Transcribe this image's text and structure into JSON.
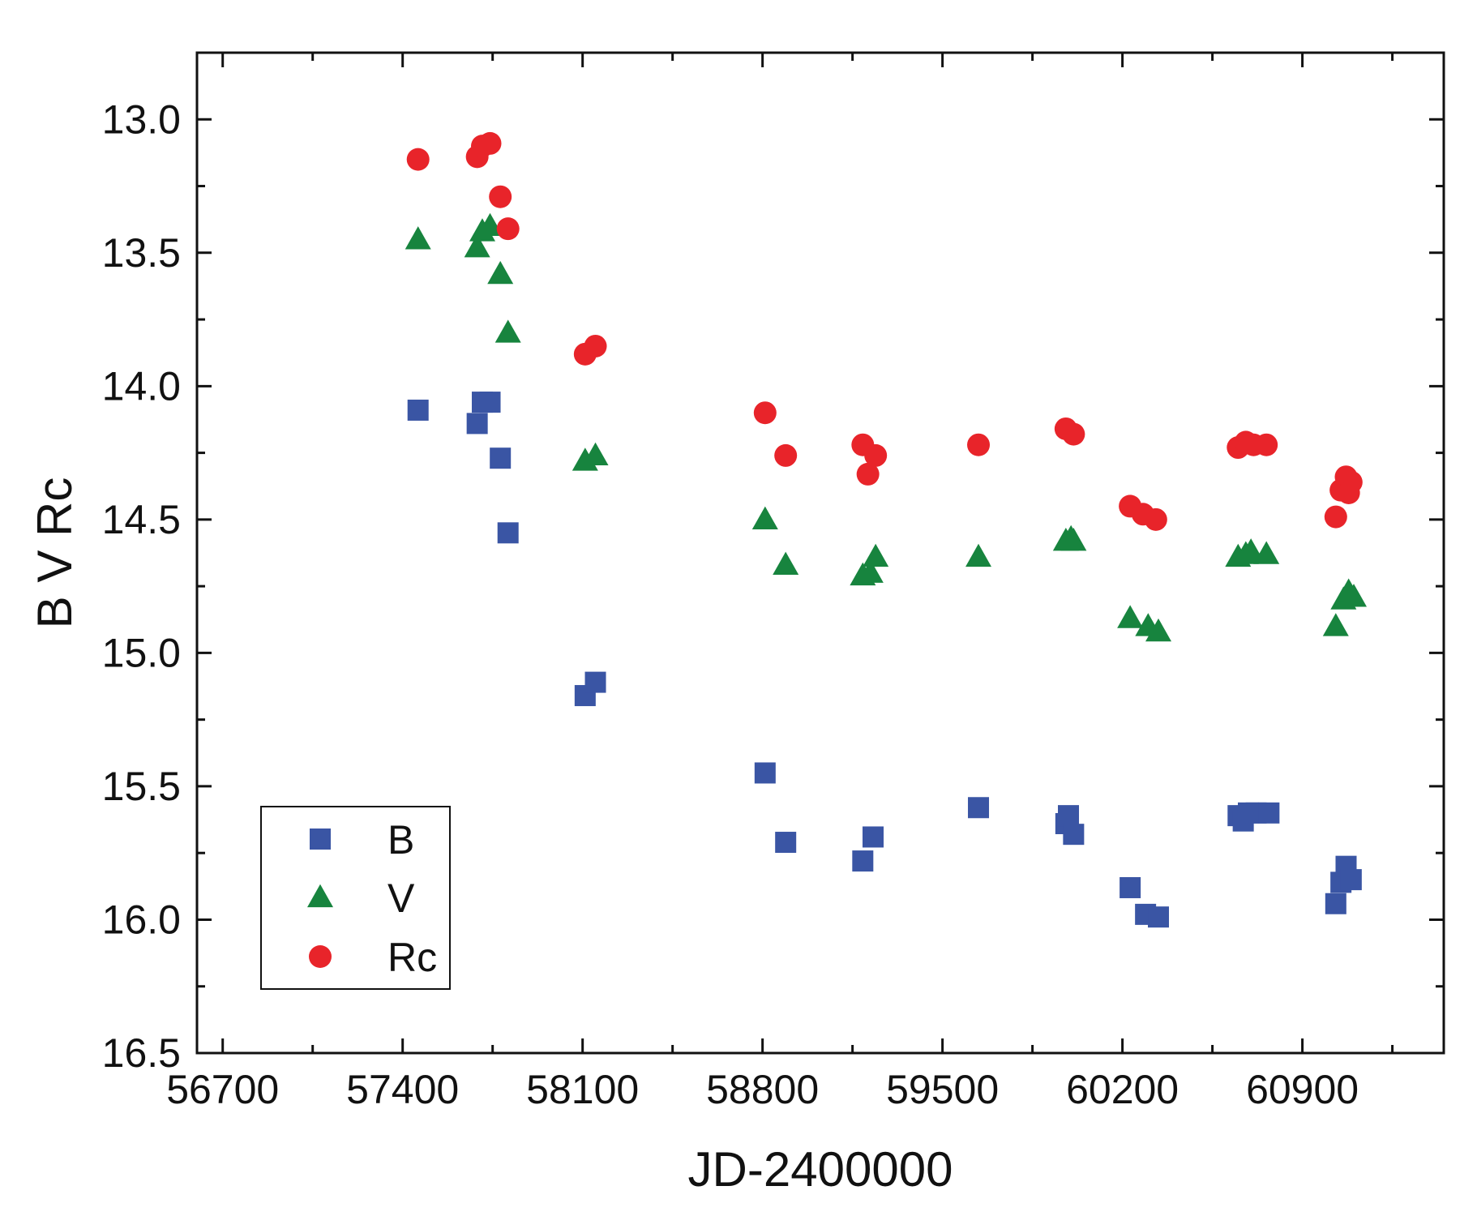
{
  "chart_data": {
    "type": "scatter",
    "title": "",
    "xlabel": "JD-2400000",
    "ylabel": "B V Rc",
    "xlim": [
      56600,
      61450
    ],
    "ylim": [
      12.75,
      16.5
    ],
    "y_inverted": true,
    "xticks": [
      56700,
      57400,
      58100,
      58800,
      59500,
      60200,
      60900
    ],
    "yticks": [
      13.0,
      13.5,
      14.0,
      14.5,
      15.0,
      15.5,
      16.0,
      16.5
    ],
    "ytick_labels": [
      "13.0",
      "13.5",
      "14.0",
      "14.5",
      "15.0",
      "15.5",
      "16.0",
      "16.5"
    ],
    "grid": false,
    "legend_position": "bottom-left",
    "series": [
      {
        "name": "B",
        "marker": "square",
        "color": "#3a55a4",
        "points": [
          [
            57460,
            14.09
          ],
          [
            57690,
            14.14
          ],
          [
            57710,
            14.06
          ],
          [
            57740,
            14.06
          ],
          [
            57780,
            14.27
          ],
          [
            57810,
            14.55
          ],
          [
            58110,
            15.16
          ],
          [
            58150,
            15.11
          ],
          [
            58810,
            15.45
          ],
          [
            58890,
            15.71
          ],
          [
            59190,
            15.78
          ],
          [
            59230,
            15.69
          ],
          [
            59640,
            15.58
          ],
          [
            59980,
            15.64
          ],
          [
            59990,
            15.61
          ],
          [
            60010,
            15.68
          ],
          [
            60230,
            15.88
          ],
          [
            60290,
            15.98
          ],
          [
            60340,
            15.99
          ],
          [
            60650,
            15.61
          ],
          [
            60670,
            15.63
          ],
          [
            60690,
            15.6
          ],
          [
            60720,
            15.6
          ],
          [
            60770,
            15.6
          ],
          [
            61030,
            15.94
          ],
          [
            61050,
            15.86
          ],
          [
            61070,
            15.8
          ],
          [
            61090,
            15.85
          ]
        ]
      },
      {
        "name": "V",
        "marker": "triangle",
        "color": "#17843e",
        "points": [
          [
            57460,
            13.45
          ],
          [
            57690,
            13.48
          ],
          [
            57710,
            13.42
          ],
          [
            57740,
            13.4
          ],
          [
            57780,
            13.58
          ],
          [
            57810,
            13.8
          ],
          [
            58110,
            14.28
          ],
          [
            58150,
            14.26
          ],
          [
            58810,
            14.5
          ],
          [
            58890,
            14.67
          ],
          [
            59190,
            14.71
          ],
          [
            59220,
            14.7
          ],
          [
            59240,
            14.64
          ],
          [
            59640,
            14.64
          ],
          [
            59980,
            14.58
          ],
          [
            60000,
            14.57
          ],
          [
            60010,
            14.58
          ],
          [
            60230,
            14.87
          ],
          [
            60300,
            14.9
          ],
          [
            60340,
            14.92
          ],
          [
            60650,
            14.64
          ],
          [
            60680,
            14.63
          ],
          [
            60700,
            14.62
          ],
          [
            60760,
            14.63
          ],
          [
            61030,
            14.9
          ],
          [
            61060,
            14.8
          ],
          [
            61080,
            14.77
          ],
          [
            61100,
            14.79
          ]
        ]
      },
      {
        "name": "Rc",
        "marker": "circle",
        "color": "#e8242a",
        "points": [
          [
            57460,
            13.15
          ],
          [
            57690,
            13.14
          ],
          [
            57710,
            13.1
          ],
          [
            57740,
            13.09
          ],
          [
            57780,
            13.29
          ],
          [
            57810,
            13.41
          ],
          [
            58110,
            13.88
          ],
          [
            58150,
            13.85
          ],
          [
            58810,
            14.1
          ],
          [
            58890,
            14.26
          ],
          [
            59190,
            14.22
          ],
          [
            59210,
            14.33
          ],
          [
            59240,
            14.26
          ],
          [
            59640,
            14.22
          ],
          [
            59980,
            14.16
          ],
          [
            60010,
            14.18
          ],
          [
            60230,
            14.45
          ],
          [
            60280,
            14.48
          ],
          [
            60330,
            14.5
          ],
          [
            60650,
            14.23
          ],
          [
            60680,
            14.21
          ],
          [
            60710,
            14.22
          ],
          [
            60760,
            14.22
          ],
          [
            61030,
            14.49
          ],
          [
            61050,
            14.39
          ],
          [
            61070,
            14.34
          ],
          [
            61090,
            14.36
          ],
          [
            61080,
            14.4
          ]
        ]
      }
    ]
  }
}
